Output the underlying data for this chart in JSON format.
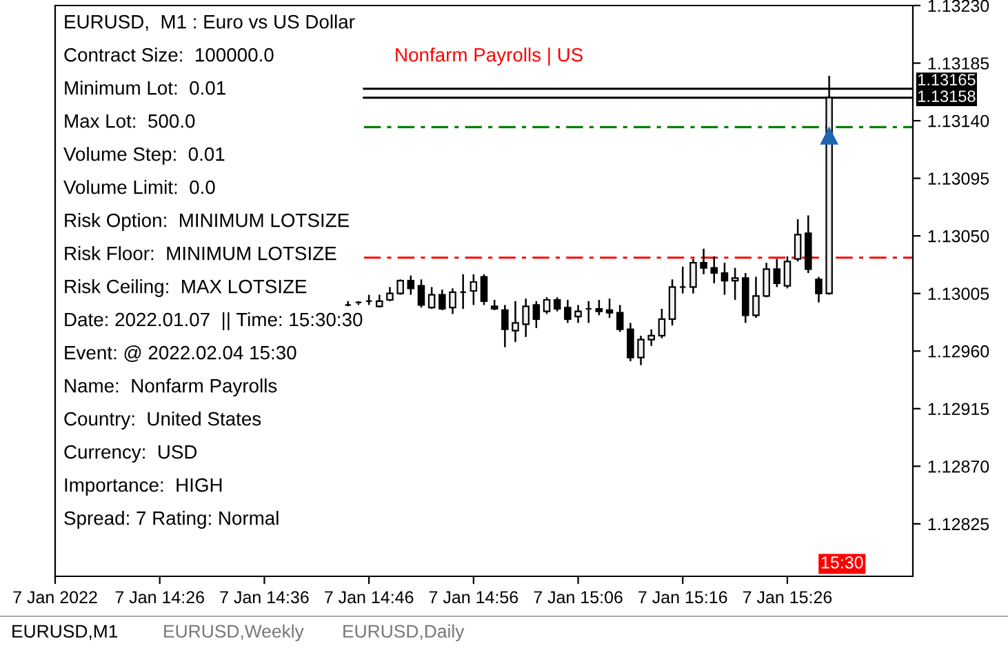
{
  "chart_data": {
    "type": "candlestick",
    "title": "EURUSD,  M1 : Euro vs US Dollar",
    "x": [
      "2022-01-07T14:44",
      "2022-01-07T14:45",
      "2022-01-07T14:46",
      "2022-01-07T14:47",
      "2022-01-07T14:48",
      "2022-01-07T14:49",
      "2022-01-07T14:50",
      "2022-01-07T14:51",
      "2022-01-07T14:52",
      "2022-01-07T14:53",
      "2022-01-07T14:54",
      "2022-01-07T14:55",
      "2022-01-07T14:56",
      "2022-01-07T14:57",
      "2022-01-07T14:58",
      "2022-01-07T14:59",
      "2022-01-07T15:00",
      "2022-01-07T15:01",
      "2022-01-07T15:02",
      "2022-01-07T15:03",
      "2022-01-07T15:04",
      "2022-01-07T15:05",
      "2022-01-07T15:06",
      "2022-01-07T15:07",
      "2022-01-07T15:08",
      "2022-01-07T15:09",
      "2022-01-07T15:10",
      "2022-01-07T15:11",
      "2022-01-07T15:12",
      "2022-01-07T15:13",
      "2022-01-07T15:14",
      "2022-01-07T15:15",
      "2022-01-07T15:16",
      "2022-01-07T15:17",
      "2022-01-07T15:18",
      "2022-01-07T15:19",
      "2022-01-07T15:20",
      "2022-01-07T15:21",
      "2022-01-07T15:22",
      "2022-01-07T15:23",
      "2022-01-07T15:24",
      "2022-01-07T15:25",
      "2022-01-07T15:26",
      "2022-01-07T15:27",
      "2022-01-07T15:28",
      "2022-01-07T15:29",
      "2022-01-07T15:30"
    ],
    "ohlc": [
      [
        1.12996,
        1.12999,
        1.12995,
        1.12996
      ],
      [
        1.12998,
        1.12999,
        1.12996,
        1.12998
      ],
      [
        1.12999,
        1.13004,
        1.12996,
        1.12999
      ],
      [
        1.12995,
        1.13004,
        1.12994,
        1.12999
      ],
      [
        1.13,
        1.1301,
        1.12999,
        1.13005
      ],
      [
        1.13005,
        1.13016,
        1.13004,
        1.13015
      ],
      [
        1.13015,
        1.13019,
        1.13004,
        1.13009
      ],
      [
        1.13011,
        1.13016,
        1.12994,
        1.12996
      ],
      [
        1.12994,
        1.1301,
        1.12993,
        1.13004
      ],
      [
        1.13004,
        1.13008,
        1.12992,
        1.12993
      ],
      [
        1.12994,
        1.13009,
        1.12989,
        1.13006
      ],
      [
        1.13006,
        1.1302,
        1.12993,
        1.13006
      ],
      [
        1.13007,
        1.1302,
        1.12996,
        1.13014
      ],
      [
        1.13018,
        1.1302,
        1.12996,
        1.12999
      ],
      [
        1.12995,
        1.13,
        1.12992,
        1.12993
      ],
      [
        1.12992,
        1.12996,
        1.12963,
        1.12977
      ],
      [
        1.12976,
        1.12999,
        1.12967,
        1.12982
      ],
      [
        1.12981,
        1.13001,
        1.12971,
        1.12995
      ],
      [
        1.12996,
        1.12999,
        1.12978,
        1.12985
      ],
      [
        1.12991,
        1.13002,
        1.12989,
        1.13
      ],
      [
        1.13,
        1.13002,
        1.12991,
        1.12993
      ],
      [
        1.12994,
        1.13,
        1.12982,
        1.12985
      ],
      [
        1.12987,
        1.12996,
        1.12982,
        1.12991
      ],
      [
        1.12993,
        1.12999,
        1.12982,
        1.12993
      ],
      [
        1.12993,
        1.13,
        1.12988,
        1.12991
      ],
      [
        1.12992,
        1.13001,
        1.12986,
        1.1299
      ],
      [
        1.1299,
        1.12996,
        1.12975,
        1.12977
      ],
      [
        1.12977,
        1.12982,
        1.12952,
        1.12955
      ],
      [
        1.12955,
        1.12972,
        1.12949,
        1.12969
      ],
      [
        1.12969,
        1.12977,
        1.12964,
        1.12972
      ],
      [
        1.12972,
        1.12993,
        1.1297,
        1.12985
      ],
      [
        1.12985,
        1.13016,
        1.1298,
        1.1301
      ],
      [
        1.1301,
        1.13026,
        1.13005,
        1.1301
      ],
      [
        1.1301,
        1.13032,
        1.13005,
        1.13029
      ],
      [
        1.13029,
        1.1304,
        1.1302,
        1.13025
      ],
      [
        1.13025,
        1.13034,
        1.13013,
        1.13021
      ],
      [
        1.13021,
        1.13029,
        1.13004,
        1.13015
      ],
      [
        1.13015,
        1.13025,
        1.13,
        1.13017
      ],
      [
        1.13017,
        1.13021,
        1.12982,
        1.12988
      ],
      [
        1.12988,
        1.13018,
        1.12986,
        1.13003
      ],
      [
        1.13003,
        1.13029,
        1.13002,
        1.13024
      ],
      [
        1.13024,
        1.13032,
        1.1301,
        1.13013
      ],
      [
        1.13011,
        1.13034,
        1.13009,
        1.1303
      ],
      [
        1.13032,
        1.13063,
        1.1303,
        1.13051
      ],
      [
        1.13052,
        1.13066,
        1.13021,
        1.13024
      ],
      [
        1.13016,
        1.13018,
        1.12998,
        1.13005
      ],
      [
        1.13005,
        1.13175,
        1.13004,
        1.13158
      ]
    ],
    "series": [
      {
        "type": "scatter",
        "x": [
          "2022-01-07T15:30"
        ],
        "values": [
          1.13128
        ],
        "color": "#1f66b0",
        "marker": "triangle"
      }
    ],
    "xlim": [
      "2022-01-07T14:16",
      "2022-01-07T15:38"
    ],
    "xticks": [
      {
        "value": "2022-01-07T14:16",
        "label": "7 Jan 2022"
      },
      {
        "value": "2022-01-07T14:26",
        "label": "7 Jan 14:26"
      },
      {
        "value": "2022-01-07T14:36",
        "label": "7 Jan 14:36"
      },
      {
        "value": "2022-01-07T14:46",
        "label": "7 Jan 14:46"
      },
      {
        "value": "2022-01-07T14:56",
        "label": "7 Jan 14:56"
      },
      {
        "value": "2022-01-07T15:06",
        "label": "7 Jan 15:06"
      },
      {
        "value": "2022-01-07T15:16",
        "label": "7 Jan 15:16"
      },
      {
        "value": "2022-01-07T15:26",
        "label": "7 Jan 15:26"
      }
    ],
    "ylim": [
      1.12784,
      1.1323
    ],
    "yticks": [
      1.12825,
      {
        "value": 1.1287,
        "label": "1.12870"
      },
      1.12915,
      {
        "value": 1.1296,
        "label": "1.12960"
      },
      1.13005,
      {
        "value": 1.1305,
        "label": "1.13050"
      },
      1.13095,
      {
        "value": 1.1314,
        "label": "1.13140"
      },
      1.13185,
      {
        "value": 1.1323,
        "label": "1.13230"
      }
    ],
    "ref_lines": [
      {
        "axis": "y",
        "value": 1.13165,
        "label": "1.13165",
        "color": "#000000",
        "line_style": "solid"
      },
      {
        "axis": "y",
        "value": 1.13158,
        "label": "1.13158",
        "color": "#000000",
        "line_style": "solid"
      },
      {
        "axis": "y",
        "value": 1.13135,
        "color": "#008000",
        "line_style": "dashed"
      },
      {
        "axis": "y",
        "value": 1.13033,
        "color": "#ff0000",
        "line_style": "dashed"
      }
    ],
    "annotations": [
      "Contract Size:  100000.0",
      "Nonfarm Payrolls | US",
      "Minimum Lot:  0.01",
      "Max Lot:  500.0",
      "Volume Step:  0.01",
      "Volume Limit:  0.0",
      "Risk Option:  MINIMUM LOTSIZE",
      "Risk Floor:  MINIMUM LOTSIZE",
      "Risk Ceiling:  MAX LOTSIZE",
      "Date: 2022.01.07  || Time: 15:30:30",
      "Event: @ 2022.02.04 15:30",
      "Name:  Nonfarm Payrolls",
      "Country:  United States",
      "Currency:  USD",
      "Importance:  HIGH",
      "Spread: 7 Rating: Normal",
      "15:30",
      "EURUSD,M1",
      "EURUSD,Weekly",
      "EURUSD,Daily"
    ],
    "grid": false,
    "legend": false
  }
}
